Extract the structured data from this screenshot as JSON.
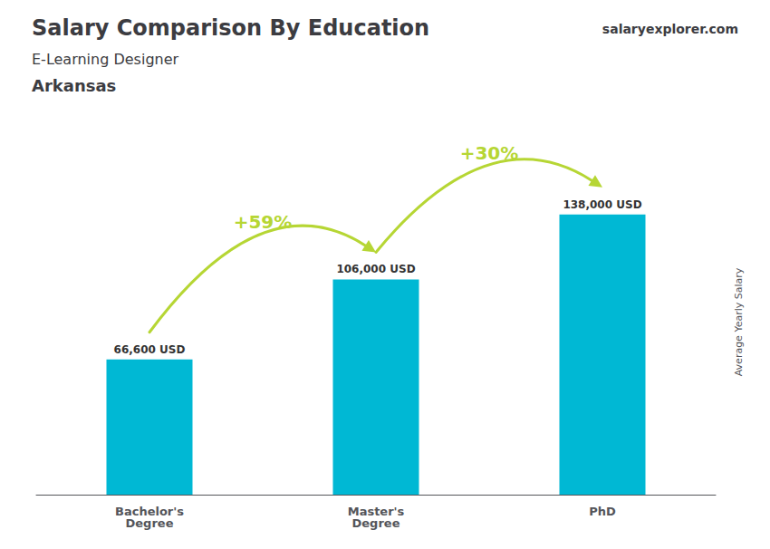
{
  "chart_data": {
    "type": "bar",
    "title": "Salary Comparison By Education",
    "subtitle": "E-Learning Designer",
    "location": "Arkansas",
    "brand": "salaryexplorer.com",
    "y_label": "Average Yearly Salary",
    "categories": [
      "Bachelor's\nDegree",
      "Master's\nDegree",
      "PhD"
    ],
    "values": [
      66600,
      106000,
      138000
    ],
    "value_labels": [
      "66,600 USD",
      "106,000 USD",
      "138,000 USD"
    ],
    "data_labels": true,
    "color": "#00b8d4",
    "ylim": [
      0,
      170000
    ],
    "tick_labels": "x",
    "grid": false,
    "annotations": [
      {
        "text": "+59%",
        "from": "Bachelor's\nDegree",
        "to": "Master's\nDegree"
      },
      {
        "text": "+30%",
        "from": "Master's\nDegree",
        "to": "PhD"
      }
    ]
  }
}
